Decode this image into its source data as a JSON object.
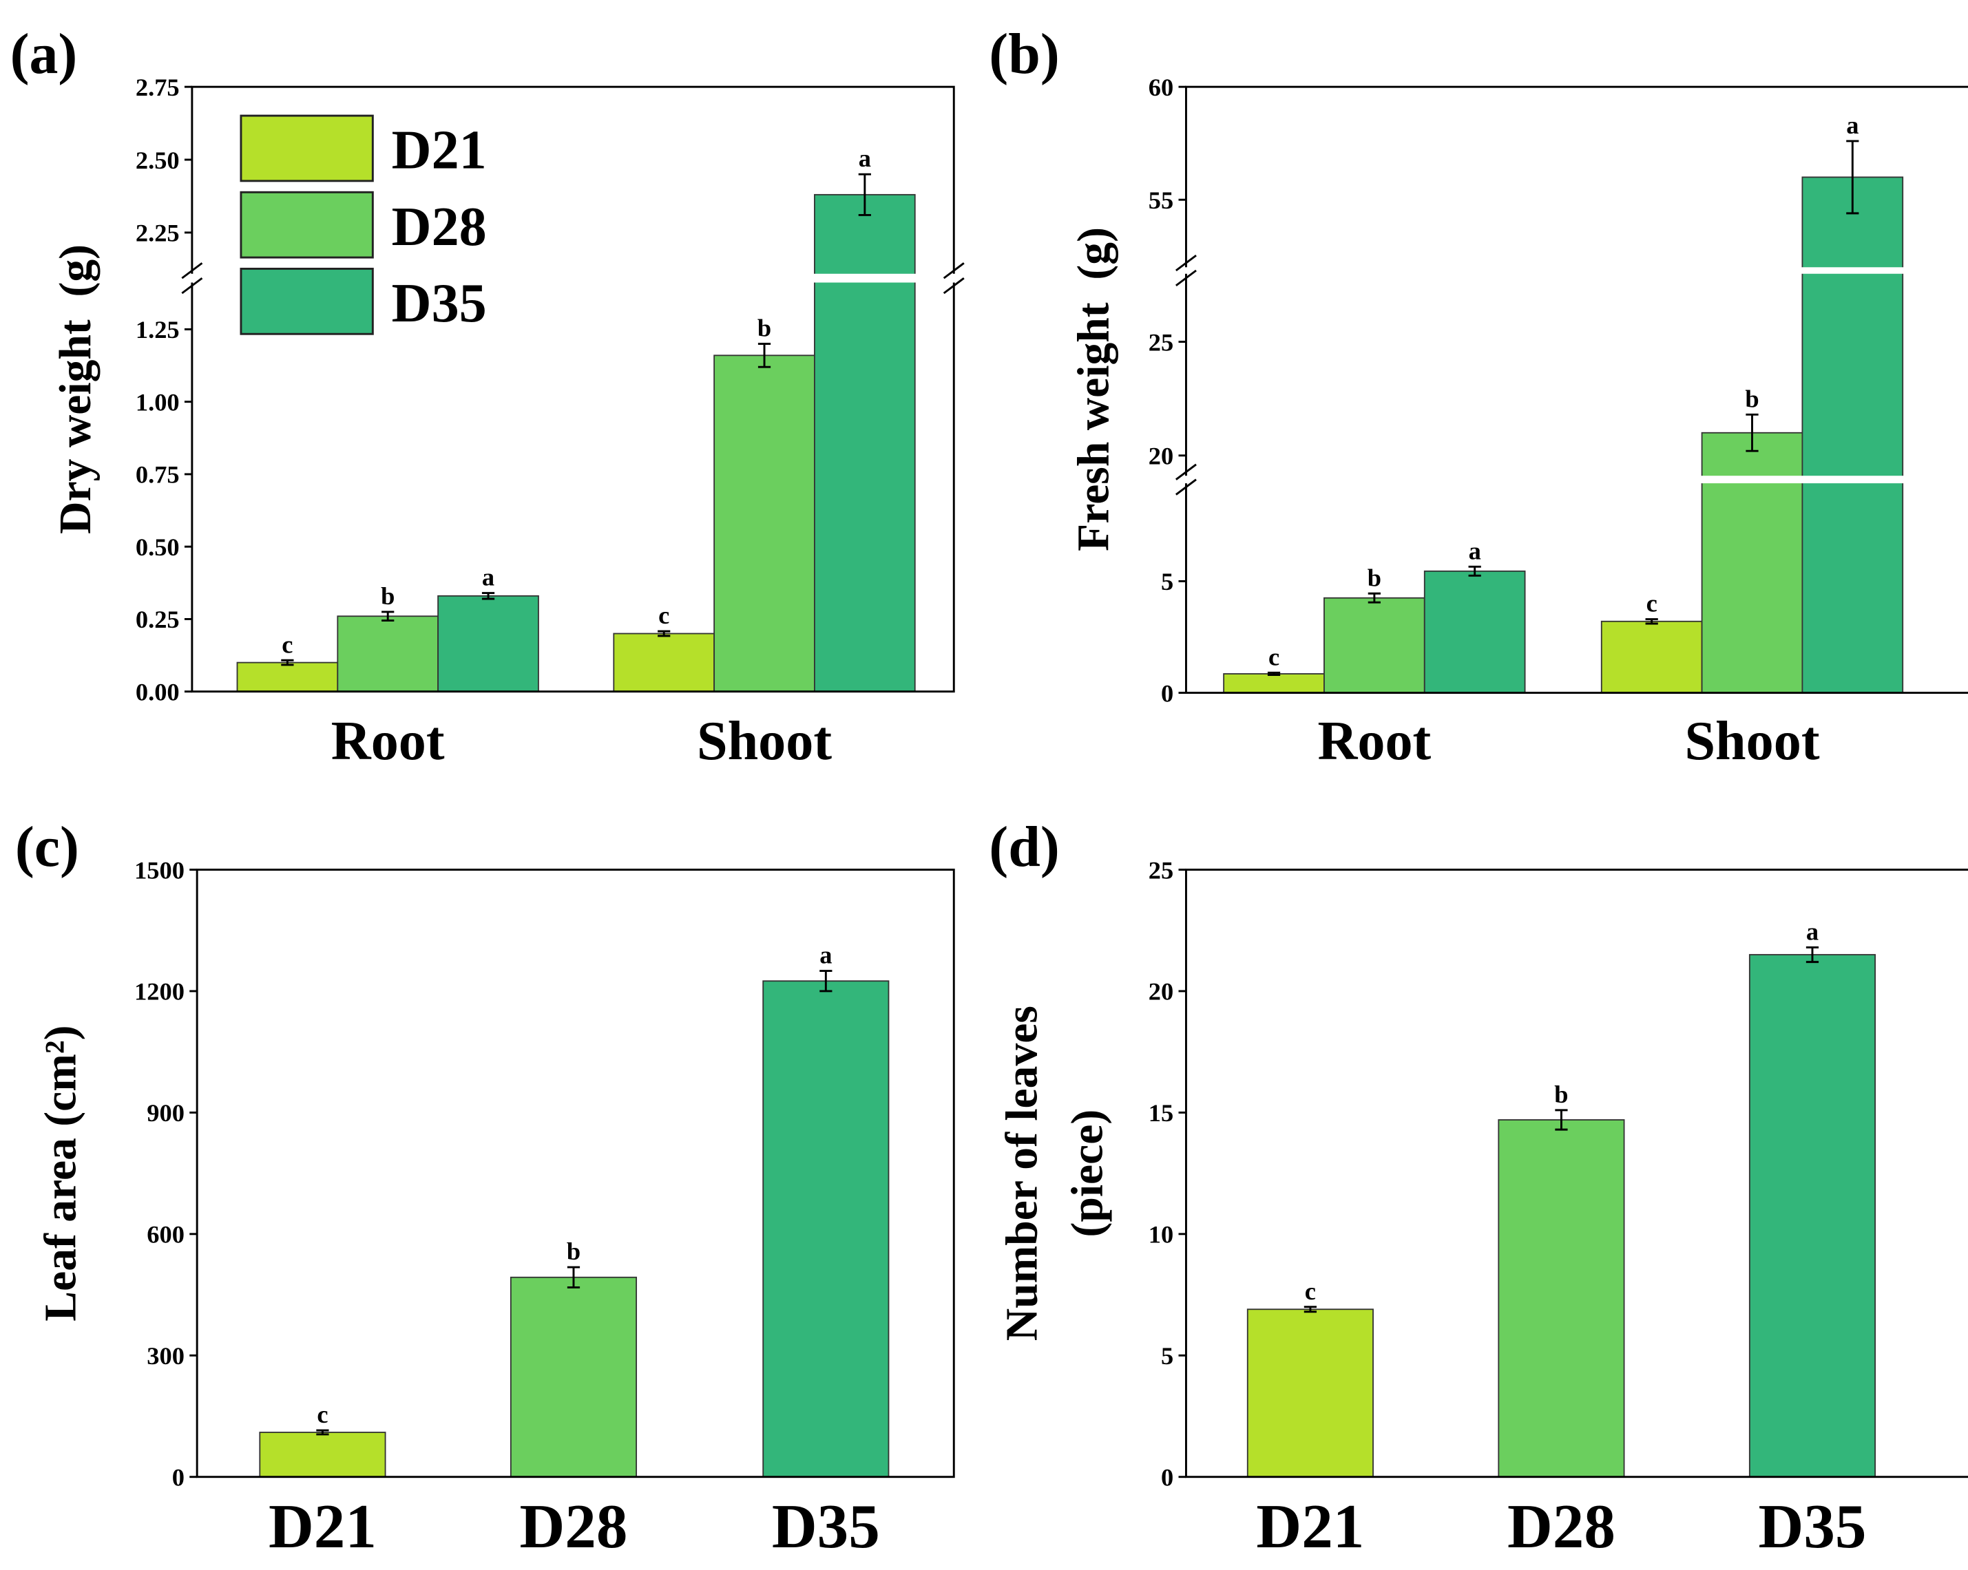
{
  "colors": {
    "D21": "#b5e02a",
    "D28": "#6bcf5e",
    "D35": "#33b67a",
    "axis": "#000000"
  },
  "legend": {
    "entries": [
      "D21",
      "D28",
      "D35"
    ],
    "placement": "top-left of panel (a)"
  },
  "chart_data": [
    {
      "panel_label": "(a)",
      "type": "bar",
      "ylabel": "Dry weight  (g)",
      "categories": [
        "Root",
        "Shoot"
      ],
      "y_segments": [
        [
          0,
          1.42
        ],
        [
          2.1,
          2.75
        ]
      ],
      "yticks": [
        "0.00",
        "0.25",
        "0.50",
        "0.75",
        "1.00",
        "1.25",
        "2.25",
        "2.50",
        "2.75"
      ],
      "series": [
        {
          "name": "D21",
          "values": [
            0.1,
            0.2
          ],
          "errors": [
            0.008,
            0.008
          ],
          "letters": [
            "c",
            "c"
          ]
        },
        {
          "name": "D28",
          "values": [
            0.26,
            1.16
          ],
          "errors": [
            0.015,
            0.04
          ],
          "letters": [
            "b",
            "b"
          ]
        },
        {
          "name": "D35",
          "values": [
            0.33,
            2.38
          ],
          "errors": [
            0.01,
            0.07
          ],
          "letters": [
            "a",
            "a"
          ]
        }
      ]
    },
    {
      "panel_label": "(b)",
      "type": "bar",
      "ylabel": "Fresh weight  (g)",
      "categories": [
        "Root",
        "Shoot"
      ],
      "y_segments": [
        [
          0,
          9.5
        ],
        [
          19,
          28.1
        ],
        [
          51.9,
          60
        ]
      ],
      "yticks": [
        "0",
        "5",
        "20",
        "25",
        "55",
        "60"
      ],
      "series": [
        {
          "name": "D21",
          "values": [
            0.85,
            3.2
          ],
          "errors": [
            0.05,
            0.1
          ],
          "letters": [
            "c",
            "c"
          ]
        },
        {
          "name": "D28",
          "values": [
            4.25,
            21.0
          ],
          "errors": [
            0.2,
            0.8
          ],
          "letters": [
            "b",
            "b"
          ]
        },
        {
          "name": "D35",
          "values": [
            5.45,
            56.0
          ],
          "errors": [
            0.2,
            1.6
          ],
          "letters": [
            "a",
            "a"
          ]
        }
      ]
    },
    {
      "panel_label": "(c)",
      "type": "bar",
      "ylabel": "Leaf area (cm²)",
      "categories": [
        "D21",
        "D28",
        "D35"
      ],
      "y_segments": [
        [
          0,
          1500
        ]
      ],
      "yticks": [
        "0",
        "300",
        "600",
        "900",
        "1200",
        "1500"
      ],
      "values": [
        110,
        493,
        1225
      ],
      "errors": [
        5,
        25,
        25
      ],
      "letters": [
        "c",
        "b",
        "a"
      ]
    },
    {
      "panel_label": "(d)",
      "type": "bar",
      "ylabel": [
        "Number of leaves",
        "(piece)"
      ],
      "categories": [
        "D21",
        "D28",
        "D35"
      ],
      "y_segments": [
        [
          0,
          25
        ]
      ],
      "yticks": [
        "0",
        "5",
        "10",
        "15",
        "20",
        "25"
      ],
      "values": [
        6.9,
        14.7,
        21.5
      ],
      "errors": [
        0.1,
        0.4,
        0.3
      ],
      "letters": [
        "c",
        "b",
        "a"
      ]
    }
  ]
}
